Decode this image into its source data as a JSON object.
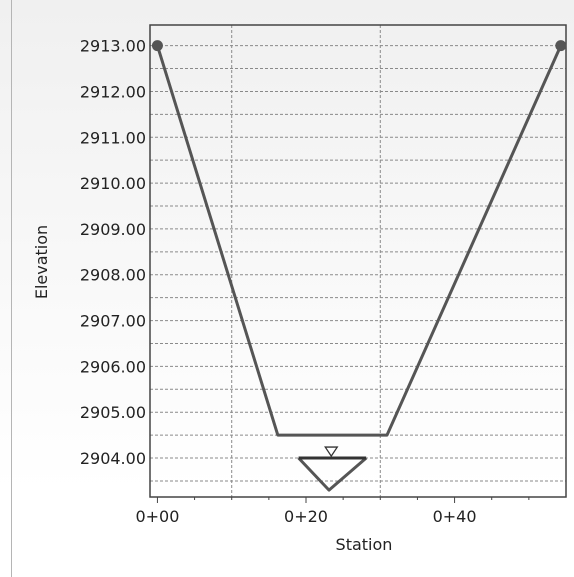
{
  "chart_data": {
    "type": "line",
    "xlabel": "Station",
    "ylabel": "Elevation",
    "xlim": [
      -1,
      55
    ],
    "ylim": [
      2903.15,
      2913.45
    ],
    "x_ticks": [
      {
        "value": 0,
        "label": "0+00"
      },
      {
        "value": 20,
        "label": "0+20"
      },
      {
        "value": 40,
        "label": "0+40"
      }
    ],
    "x_minor_ticks": [
      5,
      10,
      15,
      25,
      30,
      35,
      45,
      50
    ],
    "x_gridlines": [
      10,
      30
    ],
    "y_ticks": [
      {
        "value": 2913.0,
        "label": "2913.00"
      },
      {
        "value": 2912.0,
        "label": "2912.00"
      },
      {
        "value": 2911.0,
        "label": "2911.00"
      },
      {
        "value": 2910.0,
        "label": "2910.00"
      },
      {
        "value": 2909.0,
        "label": "2909.00"
      },
      {
        "value": 2908.0,
        "label": "2908.00"
      },
      {
        "value": 2907.0,
        "label": "2907.00"
      },
      {
        "value": 2906.0,
        "label": "2906.00"
      },
      {
        "value": 2905.0,
        "label": "2905.00"
      },
      {
        "value": 2904.0,
        "label": "2904.00"
      }
    ],
    "y_gridlines": [
      2913.5,
      2913.0,
      2912.5,
      2912.0,
      2911.5,
      2911.0,
      2910.5,
      2910.0,
      2909.5,
      2909.0,
      2908.5,
      2908.0,
      2907.5,
      2907.0,
      2906.5,
      2906.0,
      2905.5,
      2905.0,
      2904.5,
      2904.0,
      2903.5
    ],
    "grid": true,
    "series": [
      {
        "values": [
          {
            "x": 0,
            "y": 2913.0
          },
          {
            "x": 16.2,
            "y": 2904.5
          },
          {
            "x": 30.9,
            "y": 2904.5
          },
          {
            "x": 54.3,
            "y": 2913.0
          }
        ],
        "color": "#555555",
        "markers": "endpoints"
      },
      {
        "values": [
          {
            "x": 19.0,
            "y": 2904.0
          },
          {
            "x": 23.1,
            "y": 2903.3
          },
          {
            "x": 28.1,
            "y": 2904.0
          }
        ],
        "color": "#555555"
      }
    ],
    "water_surface": {
      "x_start": 19.0,
      "x_end": 28.1,
      "elevation": 2904.0,
      "marker_x": 23.4,
      "color": "#333333"
    }
  }
}
